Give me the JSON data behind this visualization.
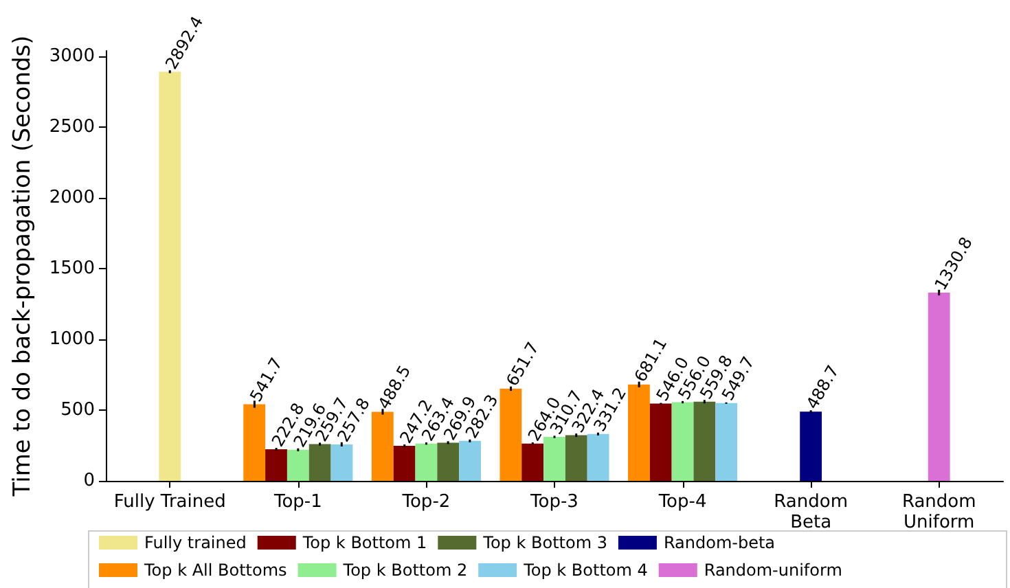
{
  "chart_data": {
    "type": "bar",
    "ylabel": "Time to do back-propagation (Seconds)",
    "categories": [
      "Fully Trained",
      "Top-1",
      "Top-2",
      "Top-3",
      "Top-4",
      "Random\nBeta",
      "Random\nUniform"
    ],
    "series": [
      {
        "name": "Fully trained",
        "color": "#f0e68c",
        "values": [
          2892.4,
          null,
          null,
          null,
          null,
          null,
          null
        ],
        "errors": [
          10,
          null,
          null,
          null,
          null,
          null,
          null
        ],
        "value_labels": [
          "2892.4",
          null,
          null,
          null,
          null,
          null,
          null
        ]
      },
      {
        "name": "Top k All Bottoms",
        "color": "#ff8c00",
        "values": [
          null,
          541.7,
          488.5,
          651.7,
          681.1,
          null,
          null
        ],
        "errors": [
          null,
          25,
          20,
          15,
          20,
          null,
          null
        ],
        "value_labels": [
          null,
          "541.7",
          "488.5",
          "651.7",
          "681.1",
          null,
          null
        ]
      },
      {
        "name": "Top k Bottom 1",
        "color": "#800000",
        "values": [
          null,
          222.8,
          247.2,
          264.0,
          546.0,
          null,
          null
        ],
        "errors": [
          null,
          10,
          10,
          8,
          5,
          null,
          null
        ],
        "value_labels": [
          null,
          "222.8",
          "247.2",
          "264.0",
          "546.0",
          null,
          null
        ]
      },
      {
        "name": "Top k Bottom 2",
        "color": "#90ee90",
        "values": [
          null,
          219.6,
          263.4,
          310.7,
          556.0,
          null,
          null
        ],
        "errors": [
          null,
          10,
          8,
          8,
          8,
          null,
          null
        ],
        "value_labels": [
          null,
          "219.6",
          "263.4",
          "310.7",
          "556.0",
          null,
          null
        ]
      },
      {
        "name": "Top k Bottom 3",
        "color": "#556b2f",
        "values": [
          null,
          259.7,
          269.9,
          322.4,
          559.8,
          null,
          null
        ],
        "errors": [
          null,
          10,
          10,
          12,
          12,
          null,
          null
        ],
        "value_labels": [
          null,
          "259.7",
          "269.9",
          "322.4",
          "559.8",
          null,
          null
        ]
      },
      {
        "name": "Top k Bottom 4",
        "color": "#87ceeb",
        "values": [
          null,
          257.8,
          282.3,
          331.2,
          549.7,
          null,
          null
        ],
        "errors": [
          null,
          15,
          10,
          10,
          5,
          null,
          null
        ],
        "value_labels": [
          null,
          "257.8",
          "282.3",
          "331.2",
          "549.7",
          null,
          null
        ]
      },
      {
        "name": "Random-beta",
        "color": "#000080",
        "values": [
          null,
          null,
          null,
          null,
          null,
          488.7,
          null
        ],
        "errors": [
          null,
          null,
          null,
          null,
          null,
          10,
          null
        ],
        "value_labels": [
          null,
          null,
          null,
          null,
          null,
          "488.7",
          null
        ]
      },
      {
        "name": "Random-uniform",
        "color": "#da70d6",
        "values": [
          null,
          null,
          null,
          null,
          null,
          null,
          1330.8
        ],
        "errors": [
          null,
          null,
          null,
          null,
          null,
          null,
          20
        ],
        "value_labels": [
          null,
          null,
          null,
          null,
          null,
          null,
          "1330.8"
        ]
      }
    ],
    "ylim": [
      0,
      3040
    ],
    "yticks": [
      0,
      500,
      1000,
      1500,
      2000,
      2500,
      3000
    ],
    "grid": false,
    "legend": "bottom"
  }
}
